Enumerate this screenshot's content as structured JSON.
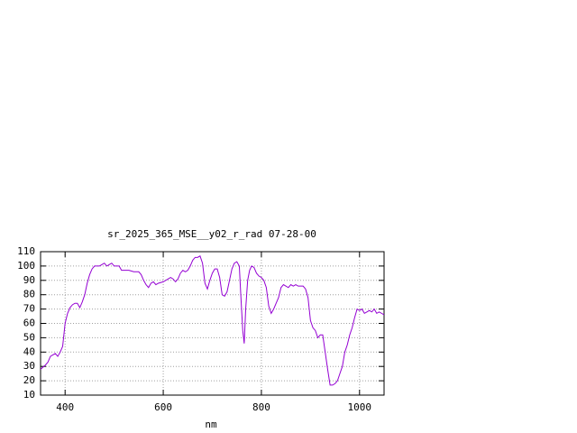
{
  "chart_data": {
    "type": "line",
    "title": "sr_2025_365_MSE__y02_r_rad 07-28-00",
    "x_label": "nm",
    "x": [
      350,
      360,
      365,
      370,
      375,
      380,
      385,
      390,
      395,
      400,
      405,
      410,
      415,
      420,
      425,
      430,
      435,
      440,
      445,
      450,
      455,
      460,
      465,
      470,
      475,
      480,
      485,
      490,
      495,
      500,
      505,
      510,
      515,
      520,
      525,
      530,
      540,
      550,
      555,
      560,
      565,
      570,
      575,
      580,
      585,
      590,
      600,
      610,
      615,
      620,
      625,
      630,
      635,
      640,
      645,
      650,
      655,
      660,
      665,
      670,
      675,
      680,
      685,
      690,
      695,
      700,
      705,
      710,
      715,
      720,
      725,
      730,
      735,
      740,
      745,
      750,
      755,
      758,
      762,
      765,
      768,
      772,
      776,
      780,
      785,
      790,
      795,
      800,
      805,
      810,
      815,
      820,
      825,
      830,
      835,
      840,
      845,
      850,
      855,
      860,
      865,
      870,
      875,
      880,
      885,
      890,
      895,
      900,
      905,
      910,
      915,
      920,
      925,
      930,
      935,
      940,
      945,
      950,
      955,
      960,
      965,
      970,
      975,
      980,
      985,
      990,
      995,
      1000,
      1005,
      1010,
      1015,
      1020,
      1025,
      1030,
      1035,
      1040,
      1045,
      1050
    ],
    "series": [
      {
        "color": "#9400d3",
        "values": [
          28,
          31,
          33,
          37,
          38,
          39,
          37,
          40,
          44,
          60,
          67,
          71,
          73,
          74,
          74,
          71,
          75,
          80,
          88,
          94,
          98,
          100,
          100,
          100,
          101,
          102,
          100,
          101,
          102,
          100,
          100,
          100,
          97,
          97,
          97,
          97,
          96,
          96,
          94,
          90,
          87,
          85,
          88,
          89,
          87,
          88,
          89,
          91,
          92,
          91,
          89,
          91,
          95,
          97,
          96,
          97,
          100,
          104,
          106,
          106,
          107,
          102,
          88,
          84,
          90,
          95,
          98,
          98,
          92,
          80,
          79,
          82,
          90,
          98,
          102,
          103,
          100,
          80,
          55,
          46,
          70,
          90,
          97,
          100,
          99,
          95,
          93,
          92,
          90,
          85,
          72,
          67,
          70,
          74,
          78,
          85,
          87,
          86,
          85,
          87,
          86,
          87,
          86,
          86,
          86,
          84,
          78,
          62,
          57,
          55,
          50,
          52,
          52,
          40,
          28,
          17,
          17,
          18,
          20,
          25,
          30,
          40,
          45,
          52,
          57,
          64,
          70,
          69,
          70,
          67,
          68,
          69,
          68,
          70,
          67,
          68,
          67,
          66
        ]
      }
    ],
    "xlim": [
      350,
      1050
    ],
    "ylim": [
      10,
      110
    ],
    "xticks": [
      400,
      600,
      800,
      1000
    ],
    "yticks": [
      10,
      20,
      30,
      40,
      50,
      60,
      70,
      80,
      90,
      100,
      110
    ],
    "grid": true
  }
}
